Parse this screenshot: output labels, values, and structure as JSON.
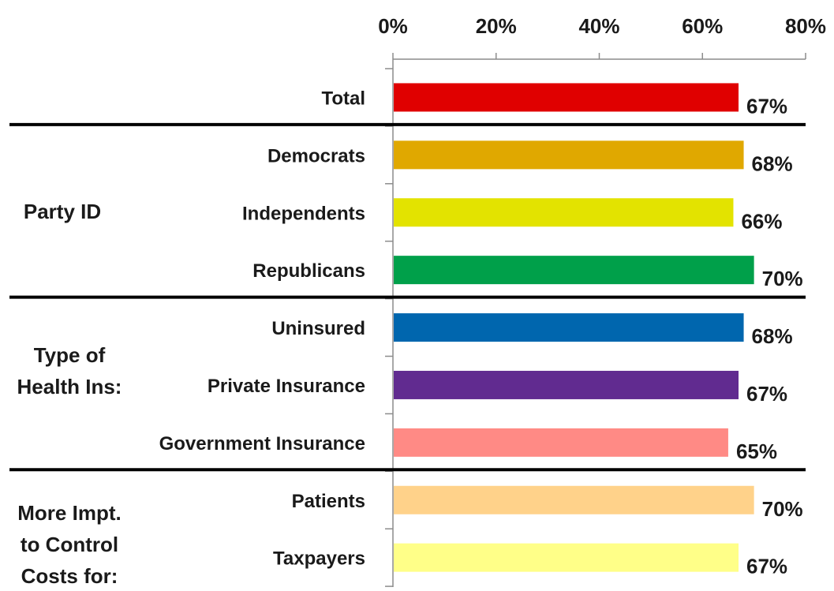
{
  "chart_data": {
    "type": "bar",
    "orientation": "horizontal",
    "xlim": [
      0,
      80
    ],
    "x_ticks": [
      "0%",
      "20%",
      "40%",
      "60%",
      "80%"
    ],
    "x_axis_position": "top",
    "grid": false,
    "legend": "none",
    "categories": [
      "Total",
      "Democrats",
      "Independents",
      "Republicans",
      "Uninsured",
      "Private Insurance",
      "Government Insurance",
      "Patients",
      "Taxpayers"
    ],
    "values": [
      67,
      68,
      66,
      70,
      68,
      67,
      65,
      70,
      67
    ],
    "data_labels": [
      "67%",
      "68%",
      "66%",
      "70%",
      "68%",
      "67%",
      "65%",
      "70%",
      "67%"
    ],
    "colors": [
      "#E00000",
      "#E0A800",
      "#E3E300",
      "#00A04A",
      "#0066AE",
      "#612B90",
      "#FF8A85",
      "#FFD28A",
      "#FFFF88"
    ],
    "groups": [
      {
        "label": [
          "Party ID"
        ]
      },
      {
        "label": [
          "Type of",
          "Health Ins:"
        ]
      },
      {
        "label": [
          "More Impt.",
          "to Control",
          "Costs for:"
        ]
      }
    ]
  }
}
